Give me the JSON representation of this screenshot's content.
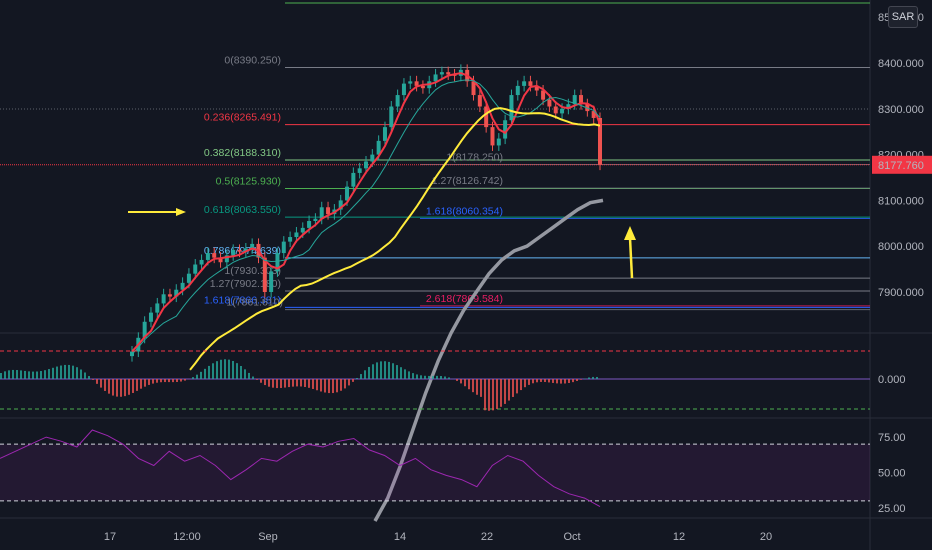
{
  "sar_button": "SAR",
  "last_price": "8177.760",
  "price_axis": {
    "labels": [
      "8500.000",
      "8400.000",
      "8300.000",
      "8200.000",
      "8100.000",
      "8000.000",
      "7900.000"
    ],
    "values": [
      8500,
      8400,
      8300,
      8200,
      8100,
      8000,
      7900
    ]
  },
  "macd_axis": {
    "labels": [
      "0.000"
    ]
  },
  "rsi_axis": {
    "labels": [
      "75.00",
      "50.00",
      "25.00"
    ],
    "values": [
      75,
      50,
      25
    ]
  },
  "time_axis": {
    "labels": [
      "17",
      "12:00",
      "Sep",
      "14",
      "22",
      "Oct",
      "12",
      "20"
    ]
  },
  "fib_levels": [
    {
      "label": "0(8390.250)",
      "price": 8390.25,
      "color": "#787b86"
    },
    {
      "label": "0.236(8265.491)",
      "price": 8265.491,
      "color": "#f23645"
    },
    {
      "label": "0.382(8188.310)",
      "price": 8188.31,
      "color": "#81c784"
    },
    {
      "label": "0.5(8125.930)",
      "price": 8125.93,
      "color": "#4caf50"
    },
    {
      "label": "0.618(8063.550)",
      "price": 8063.55,
      "color": "#089981"
    },
    {
      "label": "0.786(7974.639)",
      "price": 7974.639,
      "color": "#64b5f6"
    },
    {
      "label": "1(7930.303)",
      "price": 7930.303,
      "color": "#787b86"
    },
    {
      "label": "1.27(7902.180)",
      "price": 7902.18,
      "color": "#787b86"
    },
    {
      "label": "1.618(7866.381)",
      "price": 7866.381,
      "color": "#2962ff"
    }
  ],
  "fib_levels_2": [
    {
      "label": "1(7861.610)",
      "price": 7861.61,
      "color": "#787b86"
    },
    {
      "label": "1(8178.250)",
      "price": 8178.25,
      "color": "#787b86"
    },
    {
      "label": "1.27(8126.742)",
      "price": 8126.742,
      "color": "#787b86"
    },
    {
      "label": "1.618(8060.354)",
      "price": 8060.354,
      "color": "#2962ff"
    },
    {
      "label": "2.618(7869.584)",
      "price": 7869.584,
      "color": "#e91e63"
    }
  ],
  "colors": {
    "background": "#131722",
    "up": "#26a69a",
    "down": "#ef5350",
    "ema_red": "#f23645",
    "ema_teal": "#26a69a",
    "ma_yellow": "#ffeb3b",
    "ma_gray": "#9598a1",
    "rsi": "#9c27b0",
    "arrow": "#ffeb3b"
  },
  "chart_data": {
    "type": "line",
    "price_series_close": [
      7770,
      7800,
      7835,
      7855,
      7875,
      7895,
      7890,
      7905,
      7920,
      7940,
      7960,
      7970,
      7985,
      7975,
      7965,
      7980,
      7992,
      7988,
      7995,
      8005,
      7975,
      7900,
      7945,
      7985,
      8010,
      8020,
      8030,
      8040,
      8055,
      8060,
      8085,
      8070,
      8080,
      8100,
      8130,
      8160,
      8170,
      8185,
      8200,
      8230,
      8260,
      8305,
      8330,
      8355,
      8360,
      8350,
      8345,
      8360,
      8375,
      8380,
      8375,
      8372,
      8385,
      8360,
      8330,
      8305,
      8260,
      8220,
      8235,
      8275,
      8330,
      8350,
      8360,
      8350,
      8340,
      8320,
      8305,
      8290,
      8300,
      8310,
      8330,
      8310,
      8295,
      8280,
      8178
    ],
    "ma_gray": [
      7400,
      7450,
      7520,
      7600,
      7680,
      7750,
      7810,
      7860,
      7900,
      7940,
      7970,
      7990,
      8000,
      8020,
      8040,
      8060,
      8080,
      8095,
      8100
    ],
    "rsi_values": [
      60,
      65,
      70,
      75,
      72,
      68,
      80,
      76,
      70,
      60,
      55,
      65,
      58,
      62,
      55,
      45,
      52,
      60,
      58,
      65,
      70,
      68,
      72,
      74,
      66,
      62,
      55,
      60,
      52,
      48,
      45,
      40,
      55,
      62,
      58,
      48,
      40,
      35,
      32,
      26
    ],
    "ylim": [
      7850,
      8520
    ]
  }
}
